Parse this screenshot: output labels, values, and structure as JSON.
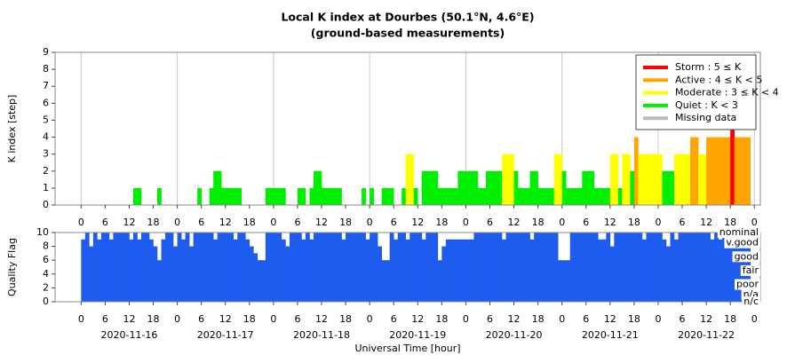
{
  "chart_data": [
    {
      "type": "bar",
      "title": "Local K index at Dourbes (50.1°N, 4.6°E)",
      "subtitle": "(ground-based measurements)",
      "ylabel": "K index [step]",
      "x": [
        0,
        1,
        2,
        3,
        4,
        5,
        6,
        7,
        8,
        9,
        10,
        11,
        12,
        13,
        14,
        15,
        16,
        17,
        18,
        19,
        20,
        21,
        22,
        23,
        24,
        25,
        26,
        27,
        28,
        29,
        30,
        31,
        32,
        33,
        34,
        35,
        36,
        37,
        38,
        39,
        40,
        41,
        42,
        43,
        44,
        45,
        46,
        47,
        48,
        49,
        50,
        51,
        52,
        53,
        54,
        55,
        56,
        57,
        58,
        59,
        60,
        61,
        62,
        63,
        64,
        65,
        66,
        67,
        68,
        69,
        70,
        71,
        72,
        73,
        74,
        75,
        76,
        77,
        78,
        79,
        80,
        81,
        82,
        83,
        84,
        85,
        86,
        87,
        88,
        89,
        90,
        91,
        92,
        93,
        94,
        95,
        96,
        97,
        98,
        99,
        100,
        101,
        102,
        103,
        104,
        105,
        106,
        107,
        108,
        109,
        110,
        111,
        112,
        113,
        114,
        115,
        116,
        117,
        118,
        119,
        120,
        121,
        122,
        123,
        124,
        125,
        126,
        127,
        128,
        129,
        130,
        131,
        132,
        133,
        134,
        135,
        136,
        137,
        138,
        139,
        140,
        141,
        142,
        143,
        144,
        145,
        146,
        147,
        148,
        149,
        150,
        151,
        152,
        153,
        154,
        155,
        156,
        157,
        158,
        159,
        160,
        161,
        162,
        163,
        164,
        165,
        166,
        167
      ],
      "values": [
        0,
        0,
        0,
        0,
        0,
        0,
        0,
        0,
        0,
        0,
        0,
        0,
        0,
        1,
        1,
        0,
        0,
        0,
        0,
        1,
        0,
        0,
        0,
        0,
        0,
        0,
        0,
        0,
        0,
        1,
        0,
        0,
        1,
        2,
        2,
        1,
        1,
        1,
        1,
        1,
        0,
        0,
        0,
        0,
        0,
        0,
        1,
        1,
        1,
        1,
        1,
        0,
        0,
        0,
        1,
        1,
        0,
        1,
        2,
        2,
        1,
        1,
        1,
        1,
        1,
        0,
        0,
        0,
        0,
        0,
        1,
        0,
        1,
        0,
        0,
        1,
        1,
        1,
        0,
        0,
        1,
        3,
        3,
        1,
        0,
        2,
        2,
        2,
        2,
        1,
        1,
        1,
        1,
        1,
        2,
        2,
        2,
        2,
        2,
        1,
        1,
        2,
        2,
        2,
        2,
        3,
        3,
        3,
        2,
        1,
        1,
        1,
        2,
        2,
        1,
        1,
        1,
        1,
        3,
        3,
        2,
        1,
        1,
        1,
        1,
        2,
        2,
        2,
        1,
        1,
        1,
        1,
        3,
        3,
        1,
        3,
        3,
        2,
        4,
        3,
        3,
        3,
        3,
        3,
        3,
        2,
        2,
        2,
        3,
        3,
        3,
        3,
        4,
        4,
        3,
        3,
        4,
        4,
        4,
        4,
        4,
        4,
        5,
        4,
        4,
        4,
        4,
        0
      ],
      "xlim": [
        -6.5,
        169.5
      ],
      "xticks": [
        0,
        6,
        12,
        18,
        {
          "value": 24,
          "label": "0"
        },
        {
          "value": 30,
          "label": "6"
        },
        {
          "value": 36,
          "label": "12"
        },
        {
          "value": 42,
          "label": "18"
        },
        {
          "value": 48,
          "label": "0"
        },
        {
          "value": 54,
          "label": "6"
        },
        {
          "value": 60,
          "label": "12"
        },
        {
          "value": 66,
          "label": "18"
        },
        {
          "value": 72,
          "label": "0"
        },
        {
          "value": 78,
          "label": "6"
        },
        {
          "value": 84,
          "label": "12"
        },
        {
          "value": 90,
          "label": "18"
        },
        {
          "value": 96,
          "label": "0"
        },
        {
          "value": 102,
          "label": "6"
        },
        {
          "value": 108,
          "label": "12"
        },
        {
          "value": 114,
          "label": "18"
        },
        {
          "value": 120,
          "label": "0"
        },
        {
          "value": 126,
          "label": "6"
        },
        {
          "value": 132,
          "label": "12"
        },
        {
          "value": 138,
          "label": "18"
        },
        {
          "value": 144,
          "label": "0"
        },
        {
          "value": 150,
          "label": "6"
        },
        {
          "value": 156,
          "label": "12"
        },
        {
          "value": 162,
          "label": "18"
        },
        {
          "value": 168,
          "label": "0"
        }
      ],
      "xgrid": [
        0,
        24,
        48,
        72,
        96,
        120,
        144,
        168
      ],
      "ylim": [
        0,
        9
      ],
      "yticks": [
        0,
        1,
        2,
        3,
        4,
        5,
        6,
        7,
        8,
        9
      ],
      "legend": {
        "position": "upper right",
        "items": [
          {
            "name": "Storm : 5 ≤ K",
            "color": "#ff0000",
            "min": 5
          },
          {
            "name": "Active : 4 ≤ K < 5",
            "color": "#ffa500",
            "min": 4
          },
          {
            "name": "Moderate : 3 ≤ K < 4",
            "color": "#ffff00",
            "min": 3
          },
          {
            "name": "Quiet : K < 3",
            "color": "#00ee00",
            "min": 0
          },
          {
            "name": "Missing data",
            "color": "#bbbbbb"
          }
        ]
      }
    },
    {
      "type": "step",
      "ylabel": "Quality Flag",
      "xlabel": "Universal Time [hour]",
      "color": "#1e5bef",
      "x": [
        0,
        1,
        2,
        3,
        4,
        5,
        6,
        7,
        8,
        9,
        10,
        11,
        12,
        13,
        14,
        15,
        16,
        17,
        18,
        19,
        20,
        21,
        22,
        23,
        24,
        25,
        26,
        27,
        28,
        29,
        30,
        31,
        32,
        33,
        34,
        35,
        36,
        37,
        38,
        39,
        40,
        41,
        42,
        43,
        44,
        45,
        46,
        47,
        48,
        49,
        50,
        51,
        52,
        53,
        54,
        55,
        56,
        57,
        58,
        59,
        60,
        61,
        62,
        63,
        64,
        65,
        66,
        67,
        68,
        69,
        70,
        71,
        72,
        73,
        74,
        75,
        76,
        77,
        78,
        79,
        80,
        81,
        82,
        83,
        84,
        85,
        86,
        87,
        88,
        89,
        90,
        91,
        92,
        93,
        94,
        95,
        96,
        97,
        98,
        99,
        100,
        101,
        102,
        103,
        104,
        105,
        106,
        107,
        108,
        109,
        110,
        111,
        112,
        113,
        114,
        115,
        116,
        117,
        118,
        119,
        120,
        121,
        122,
        123,
        124,
        125,
        126,
        127,
        128,
        129,
        130,
        131,
        132,
        133,
        134,
        135,
        136,
        137,
        138,
        139,
        140,
        141,
        142,
        143,
        144,
        145,
        146,
        147,
        148,
        149,
        150,
        151,
        152,
        153,
        154,
        155,
        156,
        157,
        158,
        159,
        160,
        161,
        162,
        163,
        164,
        165,
        166,
        167
      ],
      "values": [
        9,
        10,
        8,
        10,
        9,
        10,
        10,
        9,
        10,
        10,
        10,
        10,
        9,
        10,
        9,
        10,
        10,
        9,
        8,
        6,
        9,
        10,
        10,
        8,
        10,
        9,
        10,
        8,
        10,
        10,
        10,
        10,
        10,
        9,
        10,
        10,
        10,
        10,
        9,
        10,
        10,
        9,
        8,
        7,
        6,
        6,
        10,
        10,
        10,
        10,
        9,
        8,
        10,
        10,
        10,
        9,
        10,
        9,
        10,
        10,
        10,
        10,
        10,
        10,
        10,
        9,
        10,
        10,
        10,
        10,
        10,
        9,
        10,
        10,
        8,
        6,
        6,
        10,
        9,
        10,
        10,
        9,
        10,
        10,
        10,
        9,
        10,
        10,
        10,
        6,
        8,
        9,
        9,
        9,
        9,
        9,
        9,
        9,
        10,
        10,
        10,
        10,
        10,
        10,
        10,
        9,
        10,
        10,
        10,
        10,
        10,
        10,
        9,
        10,
        10,
        10,
        10,
        10,
        10,
        6,
        6,
        6,
        10,
        10,
        10,
        10,
        10,
        10,
        10,
        9,
        9,
        10,
        8,
        10,
        10,
        10,
        10,
        10,
        10,
        10,
        9,
        10,
        10,
        10,
        10,
        9,
        8,
        10,
        9,
        10,
        10,
        10,
        10,
        10,
        10,
        10,
        10,
        9,
        10,
        9,
        10,
        10,
        10,
        10,
        10,
        10,
        10,
        0
      ],
      "xlim": [
        -6.5,
        169.5
      ],
      "xticks": [
        0,
        6,
        12,
        18,
        {
          "value": 24,
          "label": "0"
        },
        {
          "value": 30,
          "label": "6"
        },
        {
          "value": 36,
          "label": "12"
        },
        {
          "value": 42,
          "label": "18"
        },
        {
          "value": 48,
          "label": "0"
        },
        {
          "value": 54,
          "label": "6"
        },
        {
          "value": 60,
          "label": "12"
        },
        {
          "value": 66,
          "label": "18"
        },
        {
          "value": 72,
          "label": "0"
        },
        {
          "value": 78,
          "label": "6"
        },
        {
          "value": 84,
          "label": "12"
        },
        {
          "value": 90,
          "label": "18"
        },
        {
          "value": 96,
          "label": "0"
        },
        {
          "value": 102,
          "label": "6"
        },
        {
          "value": 108,
          "label": "12"
        },
        {
          "value": 114,
          "label": "18"
        },
        {
          "value": 120,
          "label": "0"
        },
        {
          "value": 126,
          "label": "6"
        },
        {
          "value": 132,
          "label": "12"
        },
        {
          "value": 138,
          "label": "18"
        },
        {
          "value": 144,
          "label": "0"
        },
        {
          "value": 150,
          "label": "6"
        },
        {
          "value": 156,
          "label": "12"
        },
        {
          "value": 162,
          "label": "18"
        },
        {
          "value": 168,
          "label": "0"
        }
      ],
      "date_labels": [
        {
          "value": 12,
          "label": "2020-11-16"
        },
        {
          "value": 36,
          "label": "2020-11-17"
        },
        {
          "value": 60,
          "label": "2020-11-18"
        },
        {
          "value": 84,
          "label": "2020-11-19"
        },
        {
          "value": 108,
          "label": "2020-11-20"
        },
        {
          "value": 132,
          "label": "2020-11-21"
        },
        {
          "value": 156,
          "label": "2020-11-22"
        }
      ],
      "ylim": [
        0,
        10
      ],
      "yticks": [
        0,
        2,
        4,
        6,
        8,
        10
      ],
      "flag_labels": [
        {
          "value": 10,
          "label": "nominal"
        },
        {
          "value": 8.5,
          "label": "v.good"
        },
        {
          "value": 6.5,
          "label": "good"
        },
        {
          "value": 4.5,
          "label": "fair"
        },
        {
          "value": 2.5,
          "label": "poor"
        },
        {
          "value": 1,
          "label": "n/a"
        },
        {
          "value": 0,
          "label": "n/c"
        }
      ]
    }
  ]
}
